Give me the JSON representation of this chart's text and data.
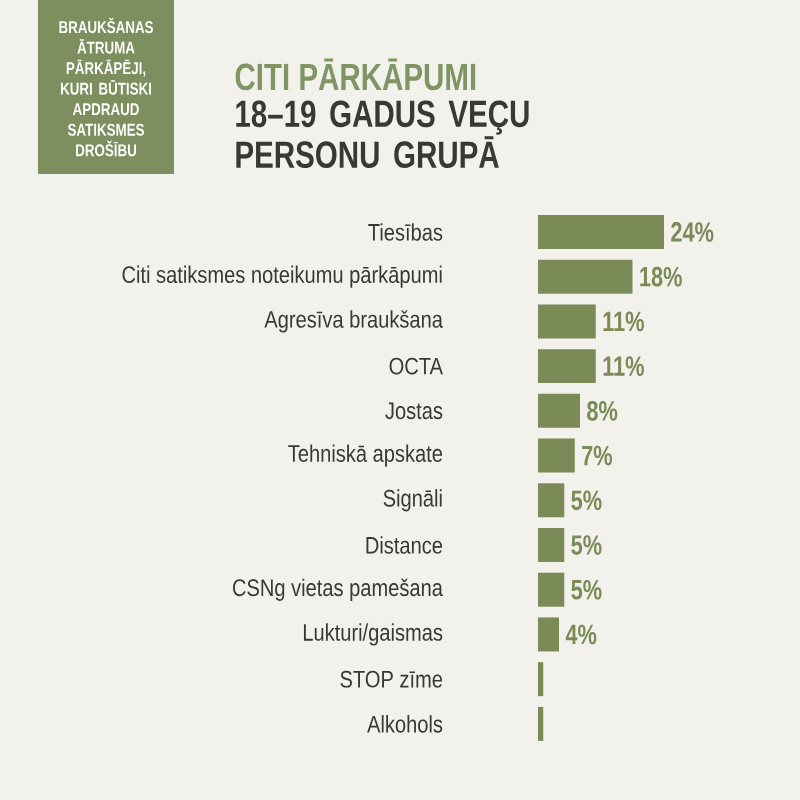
{
  "chart_data": {
    "type": "bar",
    "orientation": "horizontal",
    "title": "CITI PĀRKĀPUMI",
    "subtitle": "18–19 GADUS VEÇU PERSONU GRUPĀ",
    "annotations": [
      "BRAUKŠANAS ĀTRUMA PĀRKĀPĒJI, KURI BŪTISKI APDRAUD SATIKSMES DROŠĪBU"
    ],
    "categories": [
      "Tiesības",
      "Citi satiksmes noteikumu pārkāpumi",
      "Agresīva braukšana",
      "OCTA",
      "Jostas",
      "Tehniskā apskate",
      "Signāli",
      "Distance",
      "CSNg vietas pamešana",
      "Lukturi/gaismas",
      "STOP zīme",
      "Alkohols"
    ],
    "values": [
      24,
      18,
      11,
      11,
      8,
      7,
      5,
      5,
      5,
      4,
      1,
      1
    ],
    "value_labels": [
      "24%",
      "18%",
      "11%",
      "11%",
      "8%",
      "7%",
      "5%",
      "5%",
      "5%",
      "4%",
      null,
      null
    ],
    "color": "#7a8b58",
    "tick_labels": "y"
  }
}
